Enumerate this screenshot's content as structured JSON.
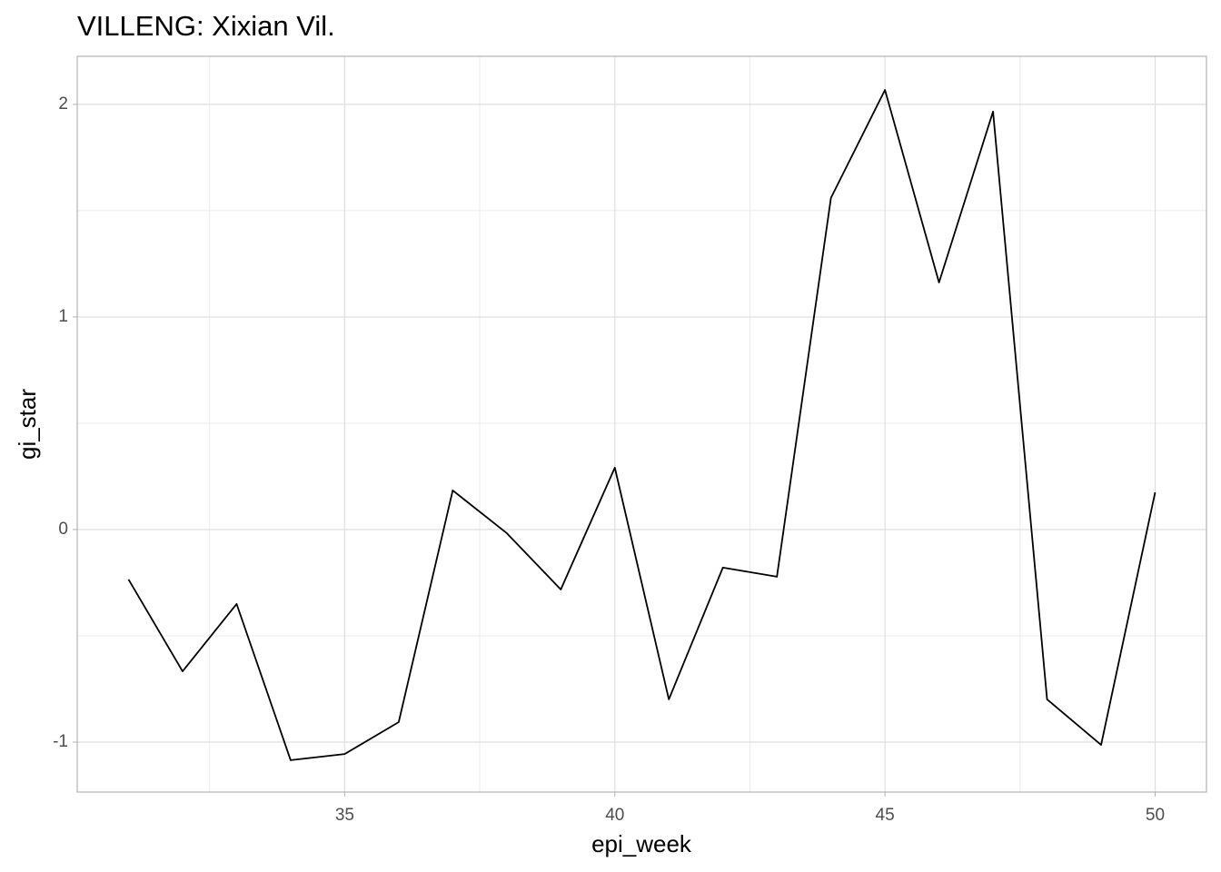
{
  "chart_data": {
    "type": "line",
    "title": "VILLENG: Xixian Vil.",
    "x_label": "epi_week",
    "y_label": "gi_star",
    "x": [
      31,
      32,
      33,
      34,
      35,
      36,
      37,
      38,
      39,
      40,
      41,
      42,
      43,
      44,
      45,
      46,
      47,
      48,
      49,
      50
    ],
    "series": [
      {
        "color": "#000000",
        "values": [
          -0.235,
          -0.667,
          -0.35,
          -1.085,
          -1.056,
          -0.906,
          0.184,
          -0.017,
          -0.282,
          0.291,
          -0.799,
          -0.179,
          -0.222,
          1.56,
          2.068,
          1.162,
          1.966,
          -0.799,
          -1.013,
          0.175
        ]
      }
    ],
    "xlim": [
      30.05,
      50.95
    ],
    "xticks": [
      35,
      40,
      45,
      50
    ],
    "xminor_ticks": [
      32.5,
      37.5,
      42.5,
      47.5
    ],
    "ylim": [
      -1.235,
      2.226
    ],
    "yticks": [
      -1,
      0,
      1,
      2
    ],
    "yminor_ticks": [
      -0.5,
      0.5,
      1.5
    ],
    "grid": true
  }
}
